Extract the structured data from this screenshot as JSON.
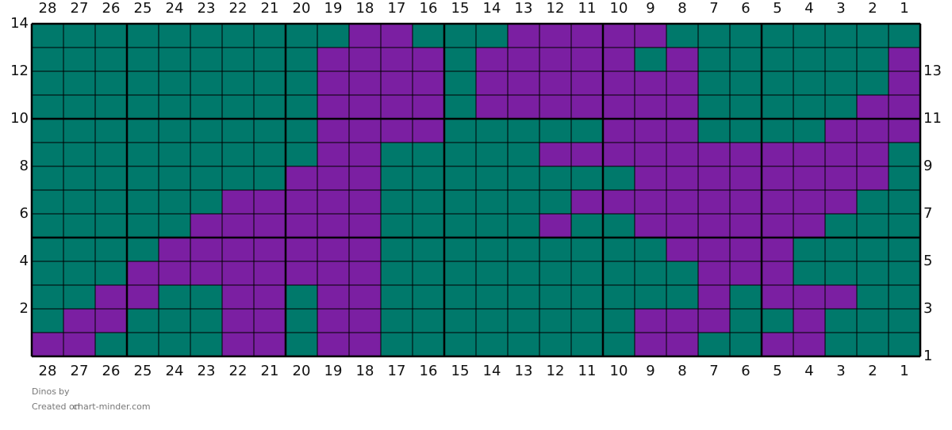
{
  "title": "Dinos",
  "title_suffix": "by",
  "credit_prefix": "Created on",
  "credit_site": "chart-minder.com",
  "palette": {
    "G": "#00796b",
    "P": "#7b1fa2"
  },
  "columns": [
    28,
    27,
    26,
    25,
    24,
    23,
    22,
    21,
    20,
    19,
    18,
    17,
    16,
    15,
    14,
    13,
    12,
    11,
    10,
    9,
    8,
    7,
    6,
    5,
    4,
    3,
    2,
    1
  ],
  "rows": [
    {
      "label": 14,
      "cells": "GGGGGGGGGGPPGGGPPPPPGGGGGGGG"
    },
    {
      "label": 13,
      "cells": "GGGGGGGGGPPPPGPPPPPGPGGGGGGP"
    },
    {
      "label": 12,
      "cells": "GGGGGGGGGPPPPGPPPPPPPGGGGGGP"
    },
    {
      "label": 11,
      "cells": "GGGGGGGGGPPPPGPPPPPPPGGGGGPP"
    },
    {
      "label": 10,
      "cells": "GGGGGGGGGPPPPGGGGGPPPGGGGPPP"
    },
    {
      "label": 9,
      "cells": "GGGGGGGGGPPGGGGGPPPPPPPPPPPG"
    },
    {
      "label": 8,
      "cells": "GGGGGGGGPPPGGGGGGGGPPPPPPPPG"
    },
    {
      "label": 7,
      "cells": "GGGGGGPPPPPGGGGGGPPPPPPPPPGG"
    },
    {
      "label": 6,
      "cells": "GGGGGPPPPPPGGGGGPGGPPPPPPGGG"
    },
    {
      "label": 5,
      "cells": "GGGGPPPPPPPGGGGGGGGGPPPPGGGG"
    },
    {
      "label": 4,
      "cells": "GGGPPPPPPPPGGGGGGGGGGPPPGGGG"
    },
    {
      "label": 3,
      "cells": "GGPPGGPPGPPGGGGGGGGGGPGPPPGG"
    },
    {
      "label": 2,
      "cells": "GPPGGGPPGPPGGGGGGGGPPPGGPGGG"
    },
    {
      "label": 1,
      "cells": "PPGGGGPPGPPGGGGGGGGPPGGPPGGG"
    }
  ]
}
